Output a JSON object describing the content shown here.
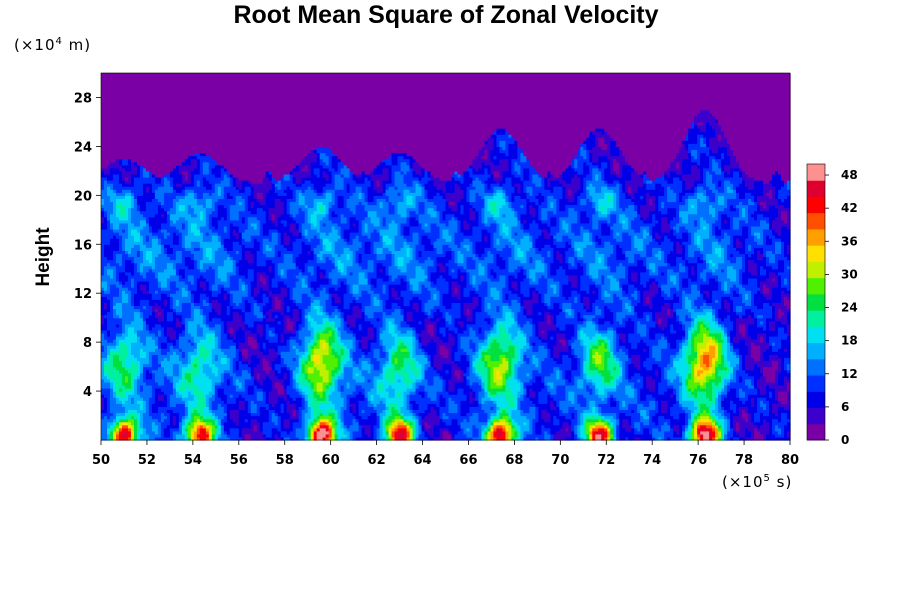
{
  "chart_data": {
    "type": "heatmap",
    "title": "Root Mean Square of Zonal Velocity",
    "ylabel": "Height",
    "y_unit": {
      "prefix": "(×10",
      "exp": "4",
      "suffix": " m)"
    },
    "x_unit": {
      "prefix": "(×10",
      "exp": "5",
      "suffix": " s)"
    },
    "xlim": [
      50,
      80
    ],
    "ylim": [
      0,
      30
    ],
    "x_ticks": [
      "50",
      "52",
      "54",
      "56",
      "58",
      "60",
      "62",
      "64",
      "66",
      "68",
      "70",
      "72",
      "74",
      "76",
      "78",
      "80"
    ],
    "y_ticks": [
      "4",
      "8",
      "12",
      "16",
      "20",
      "24",
      "28"
    ],
    "colorbar": {
      "range": [
        0,
        50
      ],
      "ticks": [
        "0",
        "6",
        "12",
        "18",
        "24",
        "30",
        "36",
        "42",
        "48"
      ],
      "colors": [
        "#7a00a6",
        "#3c00cc",
        "#0000e8",
        "#0030ff",
        "#0070ff",
        "#00b0ff",
        "#00e0f0",
        "#00f0a0",
        "#00e040",
        "#50f000",
        "#c0f000",
        "#ffe000",
        "#ffa000",
        "#ff5000",
        "#ff0000",
        "#e00030",
        "#ff9090"
      ]
    },
    "vmax": 50,
    "top_band": {
      "value": 2,
      "cloud_top_height": 21
    },
    "event_columns": [
      {
        "x": 51.0,
        "low_level_peak": 48,
        "mid_level_peak": 26,
        "mid_height": 6.5,
        "top_height": 23
      },
      {
        "x": 54.3,
        "low_level_peak": 44,
        "mid_level_peak": 22,
        "mid_height": 6.0,
        "top_height": 23.5
      },
      {
        "x": 59.6,
        "low_level_peak": 50,
        "mid_level_peak": 34,
        "mid_height": 6.5,
        "top_height": 24
      },
      {
        "x": 63.0,
        "low_level_peak": 44,
        "mid_level_peak": 24,
        "mid_height": 6.0,
        "top_height": 23.5
      },
      {
        "x": 67.4,
        "low_level_peak": 48,
        "mid_level_peak": 30,
        "mid_height": 6.5,
        "top_height": 25.5
      },
      {
        "x": 71.7,
        "low_level_peak": 46,
        "mid_level_peak": 27,
        "mid_height": 6.5,
        "top_height": 25.5
      },
      {
        "x": 76.3,
        "low_level_peak": 50,
        "mid_level_peak": 38,
        "mid_height": 6.5,
        "top_height": 27
      }
    ]
  }
}
